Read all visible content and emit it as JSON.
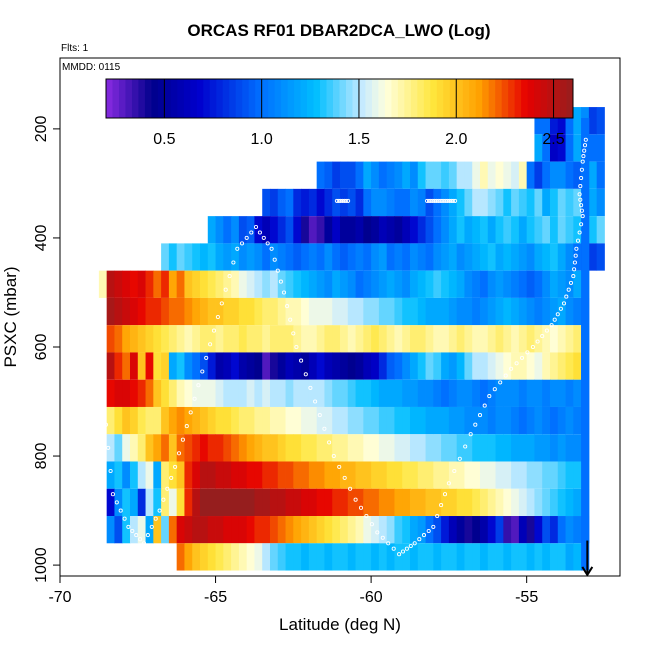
{
  "chart_data": {
    "type": "heatmap",
    "title": "ORCAS RF01 DBAR2DCA_LWO (Log)",
    "subtitle_flts": "Flts: 1",
    "subtitle_mmdd": "MMDD: 0115",
    "xlabel": "Latitude (deg N)",
    "ylabel": "PSXC (mbar)",
    "xlim": [
      -70,
      -52
    ],
    "ylim": [
      1020,
      70
    ],
    "x_ticks": [
      -70,
      -65,
      -60,
      -55
    ],
    "y_ticks": [
      200,
      400,
      600,
      800,
      1000
    ],
    "colorbar": {
      "range": [
        0.2,
        2.6
      ],
      "ticks": [
        0.5,
        1.0,
        1.5,
        2.0,
        2.5
      ],
      "tick_labels": [
        "0.5",
        "1.0",
        "1.5",
        "2.0",
        "2.5"
      ]
    },
    "cell_width_deg": 0.25,
    "layers": [
      {
        "p_top": 160,
        "p_bot": 210,
        "x_start": -54.75,
        "values": [
          1.0,
          1.0,
          0.75,
          0.7,
          1.0,
          1.2,
          1.1,
          0.85,
          0.9
        ]
      },
      {
        "p_top": 210,
        "p_bot": 260,
        "x_start": -54.75,
        "values": [
          1.2,
          1.0,
          0.65,
          0.7,
          1.0,
          1.2,
          1.1,
          1.0,
          1.0
        ]
      },
      {
        "p_top": 260,
        "p_bot": 310,
        "x_start": -61.75,
        "values": [
          1.0,
          0.95,
          0.85,
          0.9,
          0.9,
          1.0,
          1.2,
          1.1,
          1.0,
          1.05,
          1.1,
          1.2,
          1.1,
          1.3,
          1.4,
          1.4,
          1.35,
          1.4,
          1.5,
          1.5,
          1.6,
          1.7,
          1.6,
          1.65,
          1.6,
          1.55,
          1.7,
          1.0,
          0.85,
          1.0,
          1.1,
          1.1,
          1.0,
          0.95,
          1.1,
          1.2,
          1.0
        ]
      },
      {
        "p_top": 310,
        "p_bot": 360,
        "x_start": -63.5,
        "values": [
          0.9,
          0.85,
          0.95,
          1.0,
          0.8,
          0.75,
          0.8,
          0.7,
          0.8,
          0.9,
          0.85,
          0.9,
          0.8,
          1.0,
          1.1,
          1.1,
          1.05,
          1.0,
          1.0,
          1.1,
          1.05,
          0.9,
          1.0,
          1.1,
          1.2,
          1.3,
          1.4,
          1.5,
          1.5,
          1.45,
          1.4,
          1.3,
          1.4,
          1.35,
          1.3,
          1.4,
          1.2,
          1.3,
          1.4,
          1.35,
          1.4,
          1.3,
          1.2,
          1.1
        ]
      },
      {
        "p_top": 360,
        "p_bot": 410,
        "x_start": -65.25,
        "values": [
          1.2,
          1.1,
          1.0,
          1.1,
          0.9,
          0.95,
          0.7,
          0.6,
          0.7,
          0.8,
          0.9,
          0.7,
          0.4,
          0.3,
          0.35,
          0.5,
          0.65,
          0.5,
          0.5,
          0.55,
          0.45,
          0.5,
          0.6,
          0.55,
          0.5,
          0.6,
          0.7,
          0.8,
          0.9,
          1.0,
          1.1,
          1.2,
          1.3,
          1.2,
          1.25,
          1.3,
          1.2,
          1.3,
          1.35,
          1.3,
          1.2,
          1.3,
          1.35,
          1.4,
          1.3,
          1.4,
          1.35,
          1.3,
          1.25,
          1.3,
          1.4
        ]
      },
      {
        "p_top": 410,
        "p_bot": 460,
        "x_start": -66.75,
        "values": [
          1.4,
          1.3,
          1.4,
          1.35,
          1.3,
          1.25,
          1.3,
          1.2,
          1.15,
          1.2,
          1.1,
          1.15,
          1.1,
          1.0,
          1.1,
          1.05,
          1.0,
          0.95,
          1.0,
          1.05,
          1.0,
          1.1,
          1.0,
          0.95,
          1.0,
          1.05,
          1.0,
          1.1,
          1.15,
          1.0,
          1.05,
          1.0,
          1.1,
          1.05,
          1.0,
          1.1,
          1.15,
          1.2,
          1.1,
          1.15,
          1.2,
          1.25,
          1.3,
          1.2,
          1.25,
          1.2,
          1.15,
          1.1,
          1.2,
          1.25,
          1.3,
          1.2,
          1.1,
          1.0,
          0.9,
          0.85,
          0.9
        ]
      },
      {
        "p_top": 460,
        "p_bot": 510,
        "x_start": -68.75,
        "values": [
          1.7,
          2.5,
          2.45,
          2.4,
          2.35,
          2.4,
          2.3,
          2.2,
          2.3,
          2.1,
          2.2,
          2.0,
          1.95,
          1.9,
          1.85,
          1.8,
          1.75,
          1.7,
          1.6,
          1.55,
          1.5,
          1.45,
          1.5,
          1.4,
          1.35,
          1.3,
          1.25,
          1.2,
          1.15,
          1.1,
          1.2,
          1.15,
          1.1,
          1.0,
          1.05,
          1.1,
          1.15,
          1.2,
          1.15,
          1.1,
          1.2,
          1.25,
          1.3,
          1.35,
          1.3,
          1.25,
          1.2,
          1.1,
          1.05,
          1.0,
          1.1,
          1.15,
          1.1,
          1.05,
          1.0,
          0.95,
          1.0,
          1.1,
          1.2,
          1.15,
          1.1,
          1.2,
          1.15
        ]
      },
      {
        "p_top": 510,
        "p_bot": 560,
        "x_start": -68.5,
        "values": [
          2.55,
          2.5,
          2.45,
          2.4,
          2.35,
          2.3,
          2.3,
          2.25,
          2.2,
          2.2,
          2.15,
          2.1,
          2.05,
          2.0,
          2.0,
          1.95,
          1.95,
          1.9,
          1.9,
          1.85,
          1.8,
          1.8,
          1.75,
          1.7,
          1.7,
          1.65,
          1.6,
          1.6,
          1.6,
          1.55,
          1.55,
          1.5,
          1.5,
          1.45,
          1.45,
          1.4,
          1.4,
          1.35,
          1.3,
          1.3,
          1.25,
          1.2,
          1.2,
          1.2,
          1.15,
          1.1,
          1.1,
          1.05,
          1.1,
          1.15,
          1.2,
          1.25,
          1.2,
          1.15,
          1.1,
          1.05,
          1.1,
          1.15,
          1.2,
          1.1,
          1.05,
          1.0
        ]
      },
      {
        "p_top": 560,
        "p_bot": 610,
        "x_start": -68.5,
        "values": [
          2.25,
          2.2,
          2.1,
          2.05,
          2.0,
          1.95,
          1.9,
          1.85,
          1.8,
          1.75,
          1.7,
          1.75,
          1.8,
          1.8,
          1.75,
          1.8,
          1.8,
          1.85,
          1.8,
          1.8,
          1.75,
          1.8,
          1.8,
          1.8,
          1.75,
          1.7,
          1.7,
          1.75,
          1.8,
          1.8,
          1.75,
          1.7,
          1.75,
          1.8,
          1.85,
          1.8,
          1.75,
          1.7,
          1.75,
          1.8,
          1.8,
          1.75,
          1.7,
          1.7,
          1.75,
          1.8,
          1.75,
          1.7,
          1.7,
          1.75,
          1.8,
          1.75,
          1.7,
          1.75,
          1.8,
          1.75,
          1.7,
          1.65,
          1.7,
          1.75,
          1.8,
          1.0
        ]
      },
      {
        "p_top": 610,
        "p_bot": 660,
        "x_start": -68.5,
        "values": [
          2.5,
          2.3,
          2.2,
          2.4,
          2.0,
          2.35,
          1.9,
          1.95,
          1.2,
          1.3,
          1.1,
          1.0,
          0.9,
          0.75,
          0.55,
          0.6,
          0.7,
          0.55,
          0.5,
          0.45,
          0.3,
          0.4,
          0.5,
          0.6,
          0.55,
          0.5,
          0.6,
          0.7,
          0.6,
          0.55,
          0.5,
          0.45,
          0.5,
          0.6,
          0.65,
          0.8,
          0.95,
          1.0,
          1.1,
          1.2,
          1.3,
          1.4,
          1.35,
          1.2,
          1.15,
          1.25,
          1.4,
          1.5,
          1.5,
          1.55,
          1.6,
          1.65,
          1.7,
          1.7,
          1.65,
          1.6,
          1.7,
          1.75,
          1.8,
          1.85,
          1.9,
          1.0
        ]
      },
      {
        "p_top": 660,
        "p_bot": 710,
        "x_start": -68.5,
        "values": [
          2.35,
          2.4,
          2.4,
          2.35,
          2.3,
          2.2,
          2.0,
          1.9,
          1.8,
          1.7,
          1.65,
          1.6,
          1.6,
          1.6,
          1.55,
          1.5,
          1.5,
          1.5,
          1.55,
          1.5,
          1.55,
          1.5,
          1.5,
          1.45,
          1.5,
          1.5,
          1.5,
          1.5,
          1.45,
          1.4,
          1.4,
          1.35,
          1.3,
          1.3,
          1.25,
          1.2,
          1.2,
          1.2,
          1.15,
          1.15,
          1.1,
          1.1,
          1.05,
          1.0,
          1.05,
          1.1,
          1.1,
          1.05,
          1.0,
          1.05,
          1.1,
          1.1,
          1.1,
          1.05,
          1.1,
          1.1,
          1.05,
          1.1,
          1.1,
          1.05,
          1.1,
          1.0
        ]
      },
      {
        "p_top": 710,
        "p_bot": 760,
        "x_start": -68.5,
        "values": [
          1.8,
          1.9,
          2.0,
          1.95,
          1.85,
          1.8,
          1.8,
          2.0,
          2.1,
          2.15,
          2.1,
          2.05,
          2.0,
          1.95,
          1.9,
          1.9,
          1.85,
          1.8,
          1.8,
          1.75,
          1.75,
          1.7,
          1.7,
          1.65,
          1.65,
          1.6,
          1.6,
          1.55,
          1.55,
          1.5,
          1.5,
          1.45,
          1.45,
          1.4,
          1.4,
          1.35,
          1.35,
          1.3,
          1.3,
          1.25,
          1.25,
          1.2,
          1.2,
          1.2,
          1.15,
          1.15,
          1.1,
          1.1,
          1.1,
          1.05,
          1.1,
          1.1,
          1.05,
          1.0,
          1.05,
          1.1,
          1.05,
          1.0,
          1.05,
          1.1,
          1.05,
          1.0
        ]
      },
      {
        "p_top": 760,
        "p_bot": 810,
        "x_start": -68.5,
        "values": [
          1.5,
          1.4,
          1.6,
          1.7,
          1.8,
          2.0,
          2.1,
          2.2,
          2.0,
          2.2,
          2.25,
          2.3,
          2.35,
          2.3,
          2.3,
          2.25,
          2.2,
          2.15,
          2.1,
          2.05,
          2.0,
          2.0,
          1.95,
          1.9,
          1.9,
          1.85,
          1.85,
          1.8,
          1.8,
          1.75,
          1.75,
          1.7,
          1.7,
          1.65,
          1.65,
          1.6,
          1.6,
          1.55,
          1.55,
          1.5,
          1.5,
          1.45,
          1.45,
          1.4,
          1.4,
          1.35,
          1.35,
          1.3,
          1.3,
          1.3,
          1.25,
          1.25,
          1.2,
          1.2,
          1.2,
          1.15,
          1.15,
          1.1,
          1.15,
          1.1,
          1.1,
          1.05
        ]
      },
      {
        "p_top": 810,
        "p_bot": 860,
        "x_start": -68.5,
        "values": [
          1.2,
          1.3,
          1.1,
          1.3,
          1.5,
          1.6,
          1.2,
          1.8,
          1.9,
          2.0,
          2.3,
          2.4,
          2.5,
          2.5,
          2.45,
          2.45,
          2.4,
          2.4,
          2.35,
          2.35,
          2.3,
          2.3,
          2.25,
          2.25,
          2.2,
          2.2,
          2.15,
          2.15,
          2.1,
          2.1,
          2.05,
          2.05,
          2.0,
          2.0,
          1.95,
          1.95,
          1.9,
          1.9,
          1.85,
          1.85,
          1.8,
          1.8,
          1.75,
          1.75,
          1.7,
          1.7,
          1.65,
          1.65,
          1.6,
          1.6,
          1.55,
          1.55,
          1.5,
          1.5,
          1.45,
          1.45,
          1.4,
          1.4,
          1.35,
          1.3,
          1.3,
          1.25
        ]
      },
      {
        "p_top": 860,
        "p_bot": 910,
        "x_start": -68.5,
        "values": [
          0.7,
          1.1,
          1.3,
          1.2,
          0.8,
          1.5,
          1.3,
          1.8,
          1.6,
          1.9,
          2.3,
          2.5,
          2.6,
          2.6,
          2.6,
          2.6,
          2.6,
          2.6,
          2.6,
          2.55,
          2.55,
          2.5,
          2.5,
          2.45,
          2.45,
          2.4,
          2.4,
          2.35,
          2.35,
          2.3,
          2.3,
          2.25,
          2.25,
          2.2,
          2.2,
          2.15,
          2.15,
          2.1,
          2.1,
          2.05,
          2.05,
          2.0,
          2.0,
          1.95,
          1.95,
          1.9,
          1.9,
          1.85,
          1.8,
          1.75,
          1.7,
          1.65,
          1.6,
          1.55,
          1.5,
          1.45,
          1.4,
          1.35,
          1.3,
          1.25,
          1.2,
          1.15
        ]
      },
      {
        "p_top": 910,
        "p_bot": 960,
        "x_start": -68.5,
        "values": [
          1.1,
          0.9,
          1.3,
          1.5,
          1.6,
          1.2,
          2.0,
          1.4,
          2.2,
          2.4,
          2.45,
          2.5,
          2.5,
          2.45,
          2.45,
          2.4,
          2.4,
          2.4,
          2.35,
          2.3,
          2.3,
          2.25,
          2.2,
          2.15,
          2.1,
          2.05,
          2.0,
          1.95,
          1.9,
          1.85,
          1.8,
          1.75,
          1.7,
          1.6,
          1.55,
          1.5,
          1.45,
          1.35,
          1.3,
          1.2,
          1.15,
          1.0,
          0.9,
          0.75,
          0.6,
          0.5,
          0.4,
          0.45,
          0.55,
          0.7,
          0.85,
          0.35,
          0.3,
          0.6,
          0.4,
          0.7,
          0.9,
          0.8,
          1.0,
          1.1,
          1.05,
          1.0
        ]
      },
      {
        "p_top": 960,
        "p_bot": 1010,
        "x_start": -66.25,
        "values": [
          2.2,
          2.1,
          2.0,
          1.95,
          1.9,
          1.85,
          1.8,
          1.75,
          1.7,
          1.65,
          1.6,
          1.5,
          1.4,
          1.35,
          1.3,
          1.3,
          1.25,
          1.3,
          1.3,
          1.25,
          1.3,
          1.3,
          1.25,
          1.3,
          1.3,
          1.25,
          1.3,
          1.25,
          1.3,
          1.3,
          1.25,
          1.3,
          1.3,
          1.25,
          1.3,
          1.3,
          1.25,
          1.3,
          1.3,
          1.25,
          1.3,
          1.3,
          1.25,
          1.3,
          1.3,
          1.25,
          1.3,
          1.25,
          1.3,
          1.3,
          1.2,
          1.25
        ]
      },
      {
        "p_top": 180,
        "p_bot": 1010,
        "x_start": -53.25,
        "values": [
          1.0
        ]
      }
    ],
    "flight_track": [
      [
        -53.1,
        220
      ],
      [
        -53.2,
        260
      ],
      [
        -53.3,
        320
      ],
      [
        -53.2,
        360
      ],
      [
        -53.4,
        420
      ],
      [
        -53.5,
        470
      ],
      [
        -53.8,
        520
      ],
      [
        -54.2,
        560
      ],
      [
        -54.8,
        600
      ],
      [
        -55.5,
        640
      ],
      [
        -56.2,
        690
      ],
      [
        -56.8,
        760
      ],
      [
        -57.5,
        850
      ],
      [
        -58.0,
        930
      ],
      [
        -58.6,
        960
      ],
      [
        -59.1,
        980
      ],
      [
        -59.8,
        940
      ],
      [
        -60.5,
        880
      ],
      [
        -61.2,
        800
      ],
      [
        -61.8,
        700
      ],
      [
        -62.4,
        600
      ],
      [
        -62.8,
        500
      ],
      [
        -63.2,
        420
      ],
      [
        -63.7,
        380
      ],
      [
        -64.3,
        420
      ],
      [
        -64.8,
        520
      ],
      [
        -65.3,
        620
      ],
      [
        -65.8,
        720
      ],
      [
        -66.3,
        820
      ],
      [
        -66.8,
        900
      ],
      [
        -67.3,
        960
      ],
      [
        -67.8,
        930
      ],
      [
        -68.3,
        870
      ],
      [
        -68.6,
        700
      ],
      [
        -68.6,
        600
      ]
    ],
    "flight_flat_segments": [
      {
        "x_from": -61.1,
        "x_to": -60.7,
        "p": 332
      },
      {
        "x_from": -58.2,
        "x_to": -57.3,
        "p": 332
      }
    ],
    "end_arrow": {
      "x": -53.05,
      "p_from": 955,
      "p_to": 1018
    }
  }
}
